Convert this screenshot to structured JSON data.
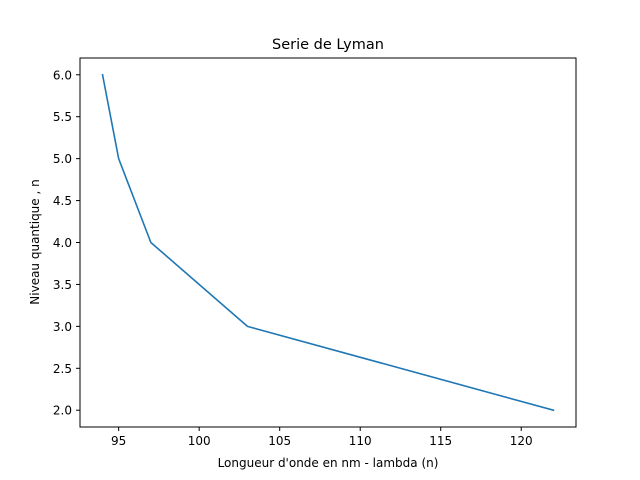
{
  "chart_data": {
    "type": "line",
    "title": "Serie de Lyman",
    "xlabel": "Longueur d'onde en nm - lambda (n)",
    "ylabel": "Niveau quantique ,  n",
    "xlim": [
      92.6,
      123.4
    ],
    "ylim": [
      1.8,
      6.2
    ],
    "xticks": [
      95,
      100,
      105,
      110,
      115,
      120
    ],
    "yticks": [
      2.0,
      2.5,
      3.0,
      3.5,
      4.0,
      4.5,
      5.0,
      5.5,
      6.0
    ],
    "xtick_labels": [
      "95",
      "100",
      "105",
      "110",
      "115",
      "120"
    ],
    "ytick_labels": [
      "2.0",
      "2.5",
      "3.0",
      "3.5",
      "4.0",
      "4.5",
      "5.0",
      "5.5",
      "6.0"
    ],
    "grid": false,
    "series": [
      {
        "color": "#1f77b4",
        "x": [
          122,
          103,
          97,
          95,
          94
        ],
        "y": [
          2,
          3,
          4,
          5,
          6
        ]
      }
    ]
  }
}
